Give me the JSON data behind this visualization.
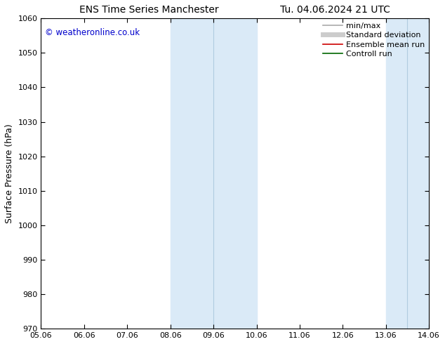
{
  "title_left": "ENS Time Series Manchester",
  "title_right": "Tu. 04.06.2024 21 UTC",
  "ylabel": "Surface Pressure (hPa)",
  "ylim": [
    970,
    1060
  ],
  "yticks": [
    970,
    980,
    990,
    1000,
    1010,
    1020,
    1030,
    1040,
    1050,
    1060
  ],
  "xlim": [
    0,
    9
  ],
  "xtick_labels": [
    "05.06",
    "06.06",
    "07.06",
    "08.06",
    "09.06",
    "10.06",
    "11.06",
    "12.06",
    "13.06",
    "14.06"
  ],
  "xtick_positions": [
    0,
    1,
    2,
    3,
    4,
    5,
    6,
    7,
    8,
    9
  ],
  "shade_bands": [
    {
      "x_start": 3.0,
      "x_end": 5.0
    },
    {
      "x_start": 8.0,
      "x_end": 9.0
    }
  ],
  "divider_lines": [
    4.0,
    8.5
  ],
  "shade_color": "#daeaf7",
  "shade_alpha": 1.0,
  "copyright_text": "© weatheronline.co.uk",
  "copyright_color": "#0000cc",
  "legend_entries": [
    {
      "label": "min/max",
      "color": "#aaaaaa",
      "lw": 1.2
    },
    {
      "label": "Standard deviation",
      "color": "#cccccc",
      "lw": 5
    },
    {
      "label": "Ensemble mean run",
      "color": "#cc0000",
      "lw": 1.2
    },
    {
      "label": "Controll run",
      "color": "#006600",
      "lw": 1.2
    }
  ],
  "bg_color": "#ffffff",
  "title_fontsize": 10,
  "ylabel_fontsize": 9,
  "tick_fontsize": 8,
  "legend_fontsize": 8
}
